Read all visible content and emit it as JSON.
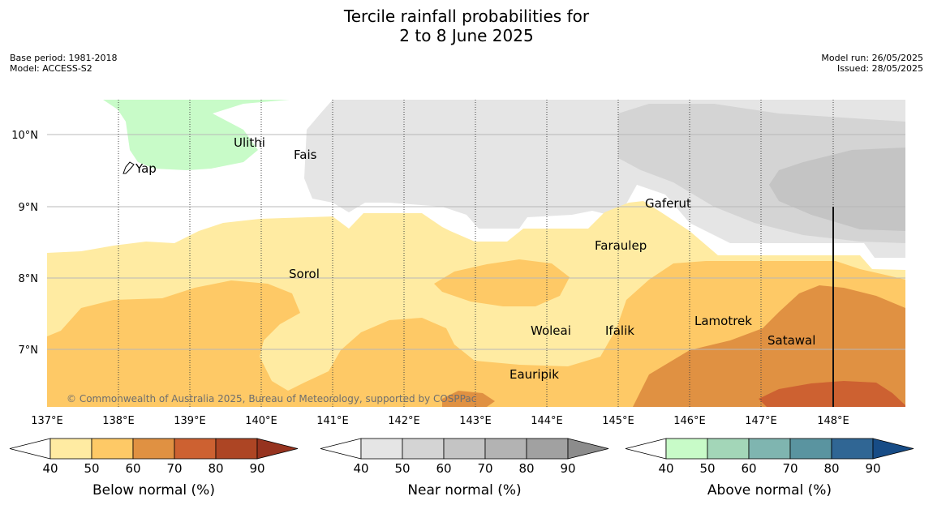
{
  "title_line1": "Tercile rainfall probabilities for",
  "title_line2": "2 to 8 June 2025",
  "base_period": "Base period: 1981-2018",
  "model": "Model: ACCESS-S2",
  "model_run": "Model run: 26/05/2025",
  "issued": "Issued: 28/05/2025",
  "copyright": "© Commonwealth of Australia 2025, Bureau of Meteorology, supported by COSPPac",
  "lat_labels": [
    "10°N",
    "9°N",
    "8°N",
    "7°N"
  ],
  "lon_labels": [
    "137°E",
    "138°E",
    "139°E",
    "140°E",
    "141°E",
    "142°E",
    "143°E",
    "144°E",
    "145°E",
    "146°E",
    "147°E",
    "148°E"
  ],
  "places": [
    "Ulithi",
    "Yap",
    "Fais",
    "Gaferut",
    "Faraulep",
    "Sorol",
    "Woleai",
    "Ifalik",
    "Lamotrek",
    "Satawal",
    "Eauripik"
  ],
  "colorbars": [
    {
      "label": "Below normal (%)",
      "ticks": [
        "40",
        "50",
        "60",
        "70",
        "80",
        "90"
      ],
      "colors": [
        "#ffeba2",
        "#fec966",
        "#e09142",
        "#cd6131",
        "#ad4524",
        "#96331f"
      ]
    },
    {
      "label": "Near normal (%)",
      "ticks": [
        "40",
        "50",
        "60",
        "70",
        "80",
        "90"
      ],
      "colors": [
        "#e5e5e5",
        "#d4d4d4",
        "#c4c4c4",
        "#b3b3b3",
        "#a1a1a1",
        "#8c8c8c"
      ]
    },
    {
      "label": "Above normal (%)",
      "ticks": [
        "40",
        "50",
        "60",
        "70",
        "80",
        "90"
      ],
      "colors": [
        "#c8fbc8",
        "#a3d6b8",
        "#7fb5b0",
        "#5a94a0",
        "#306694",
        "#174c86"
      ]
    }
  ]
}
